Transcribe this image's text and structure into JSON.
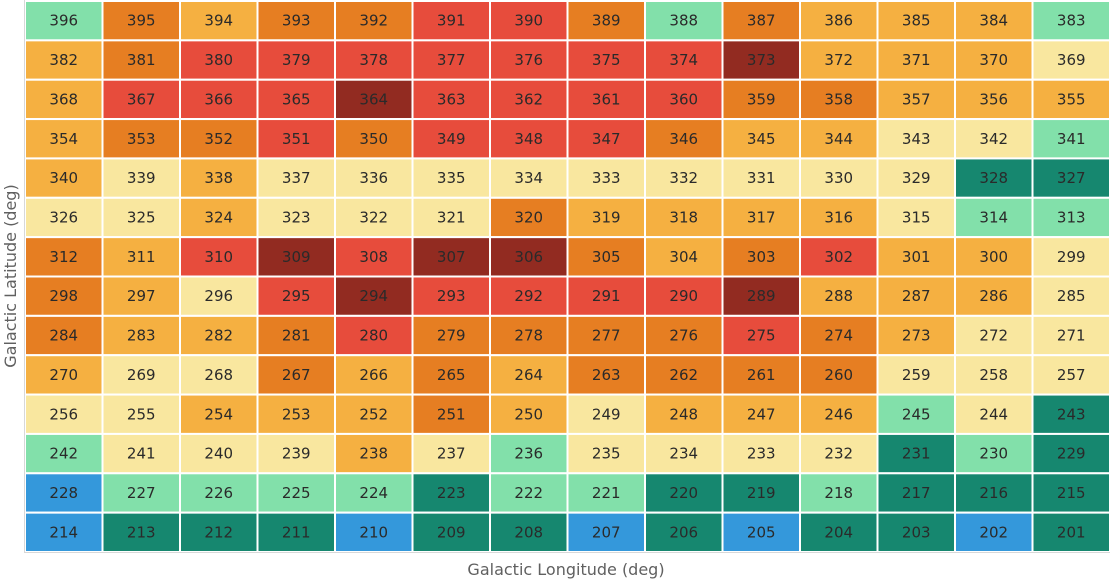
{
  "chart_data": {
    "type": "heatmap",
    "xlabel": "Galactic Longitude (deg)",
    "ylabel": "Galactic Latitude (deg)",
    "columns": 14,
    "rows": 14,
    "grid": true,
    "legend": "none",
    "palette": {
      "blue": "#3498db",
      "teal": "#16876f",
      "mint": "#82e0aa",
      "cream": "#f9e79f",
      "yellow": "#f5b041",
      "orange": "#e67e22",
      "red": "#e74c3c",
      "maroon": "#922b21"
    },
    "cells": [
      [
        {
          "id": "396",
          "c": "mint"
        },
        {
          "id": "395",
          "c": "orange"
        },
        {
          "id": "394",
          "c": "yellow"
        },
        {
          "id": "393",
          "c": "orange"
        },
        {
          "id": "392",
          "c": "orange"
        },
        {
          "id": "391",
          "c": "red"
        },
        {
          "id": "390",
          "c": "red"
        },
        {
          "id": "389",
          "c": "orange"
        },
        {
          "id": "388",
          "c": "mint"
        },
        {
          "id": "387",
          "c": "orange"
        },
        {
          "id": "386",
          "c": "yellow"
        },
        {
          "id": "385",
          "c": "yellow"
        },
        {
          "id": "384",
          "c": "yellow"
        },
        {
          "id": "383",
          "c": "mint"
        }
      ],
      [
        {
          "id": "382",
          "c": "yellow"
        },
        {
          "id": "381",
          "c": "orange"
        },
        {
          "id": "380",
          "c": "red"
        },
        {
          "id": "379",
          "c": "red"
        },
        {
          "id": "378",
          "c": "red"
        },
        {
          "id": "377",
          "c": "red"
        },
        {
          "id": "376",
          "c": "red"
        },
        {
          "id": "375",
          "c": "red"
        },
        {
          "id": "374",
          "c": "red"
        },
        {
          "id": "373",
          "c": "maroon"
        },
        {
          "id": "372",
          "c": "yellow"
        },
        {
          "id": "371",
          "c": "yellow"
        },
        {
          "id": "370",
          "c": "yellow"
        },
        {
          "id": "369",
          "c": "cream"
        }
      ],
      [
        {
          "id": "368",
          "c": "yellow"
        },
        {
          "id": "367",
          "c": "red"
        },
        {
          "id": "366",
          "c": "red"
        },
        {
          "id": "365",
          "c": "red"
        },
        {
          "id": "364",
          "c": "maroon"
        },
        {
          "id": "363",
          "c": "red"
        },
        {
          "id": "362",
          "c": "red"
        },
        {
          "id": "361",
          "c": "red"
        },
        {
          "id": "360",
          "c": "red"
        },
        {
          "id": "359",
          "c": "orange"
        },
        {
          "id": "358",
          "c": "orange"
        },
        {
          "id": "357",
          "c": "yellow"
        },
        {
          "id": "356",
          "c": "yellow"
        },
        {
          "id": "355",
          "c": "yellow"
        }
      ],
      [
        {
          "id": "354",
          "c": "yellow"
        },
        {
          "id": "353",
          "c": "orange"
        },
        {
          "id": "352",
          "c": "orange"
        },
        {
          "id": "351",
          "c": "red"
        },
        {
          "id": "350",
          "c": "orange"
        },
        {
          "id": "349",
          "c": "red"
        },
        {
          "id": "348",
          "c": "red"
        },
        {
          "id": "347",
          "c": "red"
        },
        {
          "id": "346",
          "c": "orange"
        },
        {
          "id": "345",
          "c": "yellow"
        },
        {
          "id": "344",
          "c": "yellow"
        },
        {
          "id": "343",
          "c": "cream"
        },
        {
          "id": "342",
          "c": "cream"
        },
        {
          "id": "341",
          "c": "mint"
        }
      ],
      [
        {
          "id": "340",
          "c": "yellow"
        },
        {
          "id": "339",
          "c": "cream"
        },
        {
          "id": "338",
          "c": "yellow"
        },
        {
          "id": "337",
          "c": "cream"
        },
        {
          "id": "336",
          "c": "cream"
        },
        {
          "id": "335",
          "c": "cream"
        },
        {
          "id": "334",
          "c": "cream"
        },
        {
          "id": "333",
          "c": "cream"
        },
        {
          "id": "332",
          "c": "cream"
        },
        {
          "id": "331",
          "c": "cream"
        },
        {
          "id": "330",
          "c": "cream"
        },
        {
          "id": "329",
          "c": "cream"
        },
        {
          "id": "328",
          "c": "teal"
        },
        {
          "id": "327",
          "c": "teal"
        }
      ],
      [
        {
          "id": "326",
          "c": "cream"
        },
        {
          "id": "325",
          "c": "cream"
        },
        {
          "id": "324",
          "c": "yellow"
        },
        {
          "id": "323",
          "c": "cream"
        },
        {
          "id": "322",
          "c": "cream"
        },
        {
          "id": "321",
          "c": "cream"
        },
        {
          "id": "320",
          "c": "orange"
        },
        {
          "id": "319",
          "c": "yellow"
        },
        {
          "id": "318",
          "c": "yellow"
        },
        {
          "id": "317",
          "c": "yellow"
        },
        {
          "id": "316",
          "c": "yellow"
        },
        {
          "id": "315",
          "c": "cream"
        },
        {
          "id": "314",
          "c": "mint"
        },
        {
          "id": "313",
          "c": "mint"
        }
      ],
      [
        {
          "id": "312",
          "c": "orange"
        },
        {
          "id": "311",
          "c": "yellow"
        },
        {
          "id": "310",
          "c": "red"
        },
        {
          "id": "309",
          "c": "maroon"
        },
        {
          "id": "308",
          "c": "red"
        },
        {
          "id": "307",
          "c": "maroon"
        },
        {
          "id": "306",
          "c": "maroon"
        },
        {
          "id": "305",
          "c": "orange"
        },
        {
          "id": "304",
          "c": "yellow"
        },
        {
          "id": "303",
          "c": "orange"
        },
        {
          "id": "302",
          "c": "red"
        },
        {
          "id": "301",
          "c": "yellow"
        },
        {
          "id": "300",
          "c": "yellow"
        },
        {
          "id": "299",
          "c": "cream"
        }
      ],
      [
        {
          "id": "298",
          "c": "orange"
        },
        {
          "id": "297",
          "c": "yellow"
        },
        {
          "id": "296",
          "c": "cream"
        },
        {
          "id": "295",
          "c": "red"
        },
        {
          "id": "294",
          "c": "maroon"
        },
        {
          "id": "293",
          "c": "red"
        },
        {
          "id": "292",
          "c": "red"
        },
        {
          "id": "291",
          "c": "red"
        },
        {
          "id": "290",
          "c": "red"
        },
        {
          "id": "289",
          "c": "maroon"
        },
        {
          "id": "288",
          "c": "yellow"
        },
        {
          "id": "287",
          "c": "yellow"
        },
        {
          "id": "286",
          "c": "yellow"
        },
        {
          "id": "285",
          "c": "cream"
        }
      ],
      [
        {
          "id": "284",
          "c": "orange"
        },
        {
          "id": "283",
          "c": "yellow"
        },
        {
          "id": "282",
          "c": "yellow"
        },
        {
          "id": "281",
          "c": "orange"
        },
        {
          "id": "280",
          "c": "red"
        },
        {
          "id": "279",
          "c": "orange"
        },
        {
          "id": "278",
          "c": "orange"
        },
        {
          "id": "277",
          "c": "orange"
        },
        {
          "id": "276",
          "c": "orange"
        },
        {
          "id": "275",
          "c": "red"
        },
        {
          "id": "274",
          "c": "orange"
        },
        {
          "id": "273",
          "c": "yellow"
        },
        {
          "id": "272",
          "c": "cream"
        },
        {
          "id": "271",
          "c": "cream"
        }
      ],
      [
        {
          "id": "270",
          "c": "yellow"
        },
        {
          "id": "269",
          "c": "cream"
        },
        {
          "id": "268",
          "c": "cream"
        },
        {
          "id": "267",
          "c": "orange"
        },
        {
          "id": "266",
          "c": "yellow"
        },
        {
          "id": "265",
          "c": "orange"
        },
        {
          "id": "264",
          "c": "yellow"
        },
        {
          "id": "263",
          "c": "orange"
        },
        {
          "id": "262",
          "c": "orange"
        },
        {
          "id": "261",
          "c": "orange"
        },
        {
          "id": "260",
          "c": "orange"
        },
        {
          "id": "259",
          "c": "cream"
        },
        {
          "id": "258",
          "c": "cream"
        },
        {
          "id": "257",
          "c": "cream"
        }
      ],
      [
        {
          "id": "256",
          "c": "cream"
        },
        {
          "id": "255",
          "c": "cream"
        },
        {
          "id": "254",
          "c": "yellow"
        },
        {
          "id": "253",
          "c": "yellow"
        },
        {
          "id": "252",
          "c": "yellow"
        },
        {
          "id": "251",
          "c": "orange"
        },
        {
          "id": "250",
          "c": "yellow"
        },
        {
          "id": "249",
          "c": "cream"
        },
        {
          "id": "248",
          "c": "yellow"
        },
        {
          "id": "247",
          "c": "yellow"
        },
        {
          "id": "246",
          "c": "yellow"
        },
        {
          "id": "245",
          "c": "mint"
        },
        {
          "id": "244",
          "c": "cream"
        },
        {
          "id": "243",
          "c": "teal"
        }
      ],
      [
        {
          "id": "242",
          "c": "mint"
        },
        {
          "id": "241",
          "c": "cream"
        },
        {
          "id": "240",
          "c": "cream"
        },
        {
          "id": "239",
          "c": "cream"
        },
        {
          "id": "238",
          "c": "yellow"
        },
        {
          "id": "237",
          "c": "cream"
        },
        {
          "id": "236",
          "c": "mint"
        },
        {
          "id": "235",
          "c": "cream"
        },
        {
          "id": "234",
          "c": "cream"
        },
        {
          "id": "233",
          "c": "cream"
        },
        {
          "id": "232",
          "c": "cream"
        },
        {
          "id": "231",
          "c": "teal"
        },
        {
          "id": "230",
          "c": "mint"
        },
        {
          "id": "229",
          "c": "teal"
        }
      ],
      [
        {
          "id": "228",
          "c": "blue"
        },
        {
          "id": "227",
          "c": "mint"
        },
        {
          "id": "226",
          "c": "mint"
        },
        {
          "id": "225",
          "c": "mint"
        },
        {
          "id": "224",
          "c": "mint"
        },
        {
          "id": "223",
          "c": "teal"
        },
        {
          "id": "222",
          "c": "mint"
        },
        {
          "id": "221",
          "c": "mint"
        },
        {
          "id": "220",
          "c": "teal"
        },
        {
          "id": "219",
          "c": "teal"
        },
        {
          "id": "218",
          "c": "mint"
        },
        {
          "id": "217",
          "c": "teal"
        },
        {
          "id": "216",
          "c": "teal"
        },
        {
          "id": "215",
          "c": "teal"
        }
      ],
      [
        {
          "id": "214",
          "c": "blue"
        },
        {
          "id": "213",
          "c": "teal"
        },
        {
          "id": "212",
          "c": "teal"
        },
        {
          "id": "211",
          "c": "teal"
        },
        {
          "id": "210",
          "c": "blue"
        },
        {
          "id": "209",
          "c": "teal"
        },
        {
          "id": "208",
          "c": "teal"
        },
        {
          "id": "207",
          "c": "blue"
        },
        {
          "id": "206",
          "c": "teal"
        },
        {
          "id": "205",
          "c": "blue"
        },
        {
          "id": "204",
          "c": "teal"
        },
        {
          "id": "203",
          "c": "teal"
        },
        {
          "id": "202",
          "c": "blue"
        },
        {
          "id": "201",
          "c": "teal"
        }
      ]
    ]
  }
}
